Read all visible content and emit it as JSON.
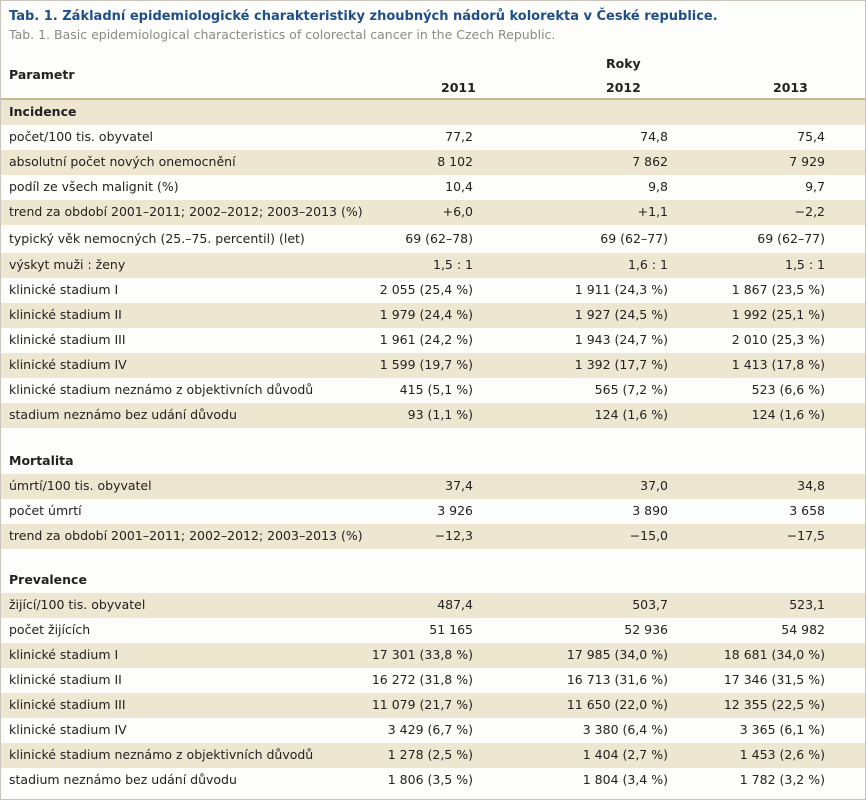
{
  "title": "Tab. 1. Základní epidemiologické charakteristiky zhoubných nádorů kolorekta v České republice.",
  "subtitle": "Tab. 1. Basic epidemiological characteristics of colorectal cancer in the Czech Republic.",
  "header": {
    "param_label": "Parametr",
    "group_label": "Roky",
    "years": [
      "2011",
      "2012",
      "2013"
    ]
  },
  "sections": [
    {
      "title": "Incidence",
      "rows": [
        {
          "label": "počet/100 tis. obyvatel",
          "values": [
            "77,2",
            "74,8",
            "75,4"
          ]
        },
        {
          "label": "absolutní počet nových onemocnění",
          "values": [
            "8 102",
            "7 862",
            "7 929"
          ]
        },
        {
          "label": "podíl ze všech malignit (%)",
          "values": [
            "10,4",
            "9,8",
            "9,7"
          ]
        },
        {
          "label": "trend za období 2001–2011; 2002–2012; 2003–2013 (%)",
          "values": [
            "+6,0",
            "+1,1",
            "−2,2"
          ]
        },
        {
          "label": "typický věk nemocných (25.–75. percentil) (let)",
          "values": [
            "69 (62–78)",
            "69 (62–77)",
            "69 (62–77)"
          ]
        },
        {
          "label": "výskyt muži : ženy",
          "values": [
            "1,5 : 1",
            "1,6 : 1",
            "1,5 : 1"
          ]
        },
        {
          "label": "klinické stadium I",
          "values": [
            "2 055 (25,4 %)",
            "1 911 (24,3 %)",
            "1 867 (23,5 %)"
          ]
        },
        {
          "label": "klinické stadium II",
          "values": [
            "1 979 (24,4 %)",
            "1 927 (24,5 %)",
            "1 992 (25,1 %)"
          ]
        },
        {
          "label": "klinické stadium III",
          "values": [
            "1 961 (24,2 %)",
            "1 943 (24,7 %)",
            "2 010 (25,3 %)"
          ]
        },
        {
          "label": "klinické stadium IV",
          "values": [
            "1 599 (19,7 %)",
            "1 392 (17,7 %)",
            "1 413 (17,8 %)"
          ]
        },
        {
          "label": "klinické stadium neznámo z objektivních důvodů",
          "values": [
            "415 (5,1 %)",
            "565 (7,2 %)",
            "523 (6,6 %)"
          ]
        },
        {
          "label": "stadium neznámo bez udání důvodu",
          "values": [
            "93 (1,1 %)",
            "124 (1,6 %)",
            "124 (1,6 %)"
          ]
        }
      ]
    },
    {
      "title": "Mortalita",
      "rows": [
        {
          "label": "úmrtí/100 tis. obyvatel",
          "values": [
            "37,4",
            "37,0",
            "34,8"
          ]
        },
        {
          "label": "počet úmrtí",
          "values": [
            "3 926",
            "3 890",
            "3 658"
          ]
        },
        {
          "label": "trend za období 2001–2011; 2002–2012; 2003–2013 (%)",
          "values": [
            "−12,3",
            "−15,0",
            "−17,5"
          ]
        }
      ]
    },
    {
      "title": "Prevalence",
      "rows": [
        {
          "label": "žijící/100 tis. obyvatel",
          "values": [
            "487,4",
            "503,7",
            "523,1"
          ]
        },
        {
          "label": "počet žijících",
          "values": [
            "51 165",
            "52 936",
            "54 982"
          ]
        },
        {
          "label": "klinické stadium I",
          "values": [
            "17 301 (33,8 %)",
            "17 985 (34,0 %)",
            "18 681 (34,0 %)"
          ]
        },
        {
          "label": "klinické stadium II",
          "values": [
            "16 272 (31,8 %)",
            "16 713 (31,6 %)",
            "17 346 (31,5 %)"
          ]
        },
        {
          "label": "klinické stadium III",
          "values": [
            "11 079 (21,7 %)",
            "11 650 (22,0 %)",
            "12 355 (22,5 %)"
          ]
        },
        {
          "label": "klinické stadium IV",
          "values": [
            "3 429 (6,7 %)",
            "3 380 (6,4 %)",
            "3 365 (6,1 %)"
          ]
        },
        {
          "label": "klinické stadium neznámo z objektivních důvodů",
          "values": [
            "1 278 (2,5 %)",
            "1 404 (2,7 %)",
            "1 453 (2,6 %)"
          ]
        },
        {
          "label": "stadium neznámo bez udání důvodu",
          "values": [
            "1 806 (3,5 %)",
            "1 804 (3,4 %)",
            "1 782 (3,2 %)"
          ]
        }
      ]
    }
  ]
}
